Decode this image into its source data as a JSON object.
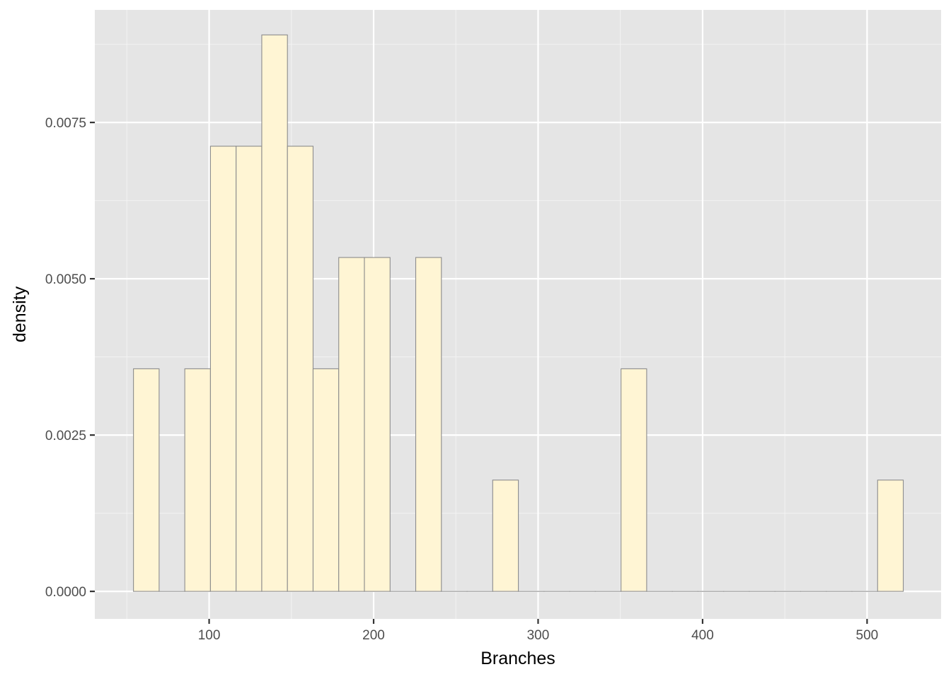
{
  "chart_data": {
    "type": "bar",
    "subtype": "histogram",
    "xlabel": "Branches",
    "ylabel": "density",
    "xlim": [
      30.5,
      545
    ],
    "ylim": [
      -0.00044,
      0.0093
    ],
    "x_ticks": [
      100,
      200,
      300,
      400,
      500
    ],
    "x_minor_ticks": [
      50,
      150,
      250,
      350,
      450
    ],
    "y_ticks": [
      0.0,
      0.0025,
      0.005,
      0.0075
    ],
    "y_tick_labels": [
      "0.0000",
      "0.0025",
      "0.0050",
      "0.0075"
    ],
    "y_minor_ticks": [
      0.00125,
      0.00375,
      0.00625,
      0.00875
    ],
    "bin_width": 15.6,
    "bins": [
      {
        "x0": 54.0,
        "x1": 69.6,
        "value": 0.00356
      },
      {
        "x0": 69.6,
        "x1": 85.2,
        "value": 0.0
      },
      {
        "x0": 85.2,
        "x1": 100.8,
        "value": 0.00356
      },
      {
        "x0": 100.8,
        "x1": 116.4,
        "value": 0.00712
      },
      {
        "x0": 116.4,
        "x1": 132.0,
        "value": 0.00712
      },
      {
        "x0": 132.0,
        "x1": 147.6,
        "value": 0.0089
      },
      {
        "x0": 147.6,
        "x1": 163.2,
        "value": 0.00712
      },
      {
        "x0": 163.2,
        "x1": 178.8,
        "value": 0.00356
      },
      {
        "x0": 178.8,
        "x1": 194.4,
        "value": 0.00534
      },
      {
        "x0": 194.4,
        "x1": 210.0,
        "value": 0.00534
      },
      {
        "x0": 210.0,
        "x1": 225.6,
        "value": 0.0
      },
      {
        "x0": 225.6,
        "x1": 241.2,
        "value": 0.00534
      },
      {
        "x0": 241.2,
        "x1": 256.8,
        "value": 0.0
      },
      {
        "x0": 256.8,
        "x1": 272.4,
        "value": 0.0
      },
      {
        "x0": 272.4,
        "x1": 288.0,
        "value": 0.00178
      },
      {
        "x0": 288.0,
        "x1": 303.6,
        "value": 0.0
      },
      {
        "x0": 303.6,
        "x1": 319.2,
        "value": 0.0
      },
      {
        "x0": 319.2,
        "x1": 334.8,
        "value": 0.0
      },
      {
        "x0": 334.8,
        "x1": 350.4,
        "value": 0.0
      },
      {
        "x0": 350.4,
        "x1": 366.0,
        "value": 0.00356
      },
      {
        "x0": 366.0,
        "x1": 381.6,
        "value": 0.0
      },
      {
        "x0": 381.6,
        "x1": 397.2,
        "value": 0.0
      },
      {
        "x0": 397.2,
        "x1": 412.8,
        "value": 0.0
      },
      {
        "x0": 412.8,
        "x1": 428.4,
        "value": 0.0
      },
      {
        "x0": 428.4,
        "x1": 444.0,
        "value": 0.0
      },
      {
        "x0": 444.0,
        "x1": 459.6,
        "value": 0.0
      },
      {
        "x0": 459.6,
        "x1": 475.2,
        "value": 0.0
      },
      {
        "x0": 475.2,
        "x1": 490.8,
        "value": 0.0
      },
      {
        "x0": 490.8,
        "x1": 506.4,
        "value": 0.0
      },
      {
        "x0": 506.4,
        "x1": 522.0,
        "value": 0.00178
      }
    ],
    "grid": true,
    "colors": {
      "panel_background": "#e5e5e5",
      "grid_major": "#ffffff",
      "grid_minor": "#f2f2f2",
      "bar_fill": "#fff5d4",
      "bar_stroke": "#8c8c8c",
      "tick_mark": "#333333"
    }
  }
}
